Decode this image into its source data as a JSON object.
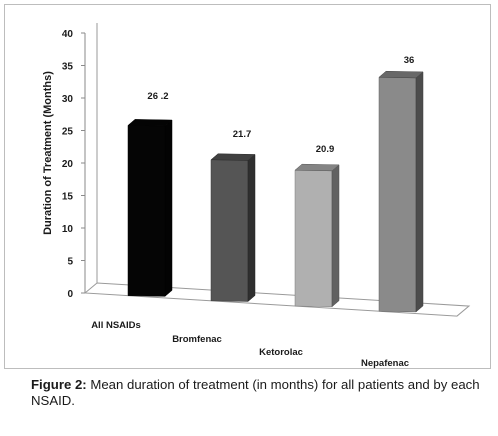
{
  "chart_data": {
    "type": "bar",
    "categories": [
      "All NSAIDs",
      "Bromfenac",
      "Ketorolac",
      "Nepafenac"
    ],
    "values": [
      26.2,
      21.7,
      20.9,
      36
    ],
    "value_labels": [
      "26 .2",
      "21.7",
      "20.9",
      "36"
    ],
    "ylabel": "Duration of Treatment (Months)",
    "ylim": [
      0,
      40
    ],
    "yticks": [
      0,
      5,
      10,
      15,
      20,
      25,
      30,
      35,
      40
    ],
    "style": "3d",
    "grid": false,
    "bar_colors": [
      "#050505",
      "#555555",
      "#b0b0b0",
      "#8a8a8a"
    ]
  },
  "caption": {
    "label": "Figure 2:",
    "text": " Mean duration of treatment (in months) for all patients and by each NSAID."
  }
}
